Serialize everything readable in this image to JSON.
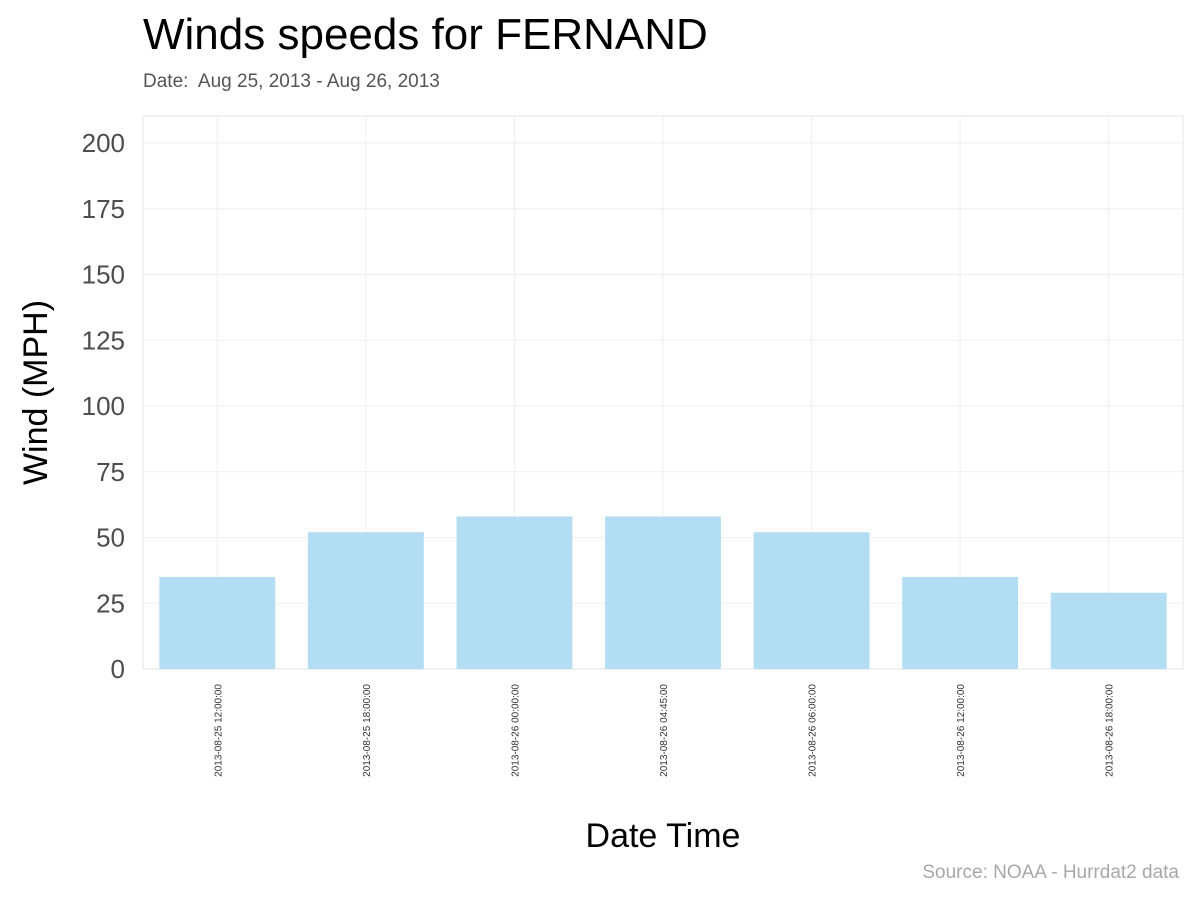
{
  "title": "Winds speeds for FERNAND",
  "subtitle": "Date:  Aug 25, 2013 - Aug 26, 2013",
  "source": "Source: NOAA - Hurrdat2 data",
  "colors": {
    "bar": "#b3ddf2",
    "grid": "#efefef",
    "panel_border": "#e6e6e6"
  },
  "chart_data": {
    "type": "bar",
    "xlabel": "Date Time",
    "ylabel": "Wind (MPH)",
    "ylim": [
      0,
      200
    ],
    "yticks": [
      0,
      25,
      50,
      75,
      100,
      125,
      150,
      175,
      200
    ],
    "categories": [
      "2013-08-25 12:00:00",
      "2013-08-25 18:00:00",
      "2013-08-26 00:00:00",
      "2013-08-26 04:45:00",
      "2013-08-26 06:00:00",
      "2013-08-26 12:00:00",
      "2013-08-26 18:00:00"
    ],
    "values": [
      35,
      52,
      58,
      58,
      52,
      35,
      29
    ],
    "grid": true,
    "legend": "none"
  }
}
